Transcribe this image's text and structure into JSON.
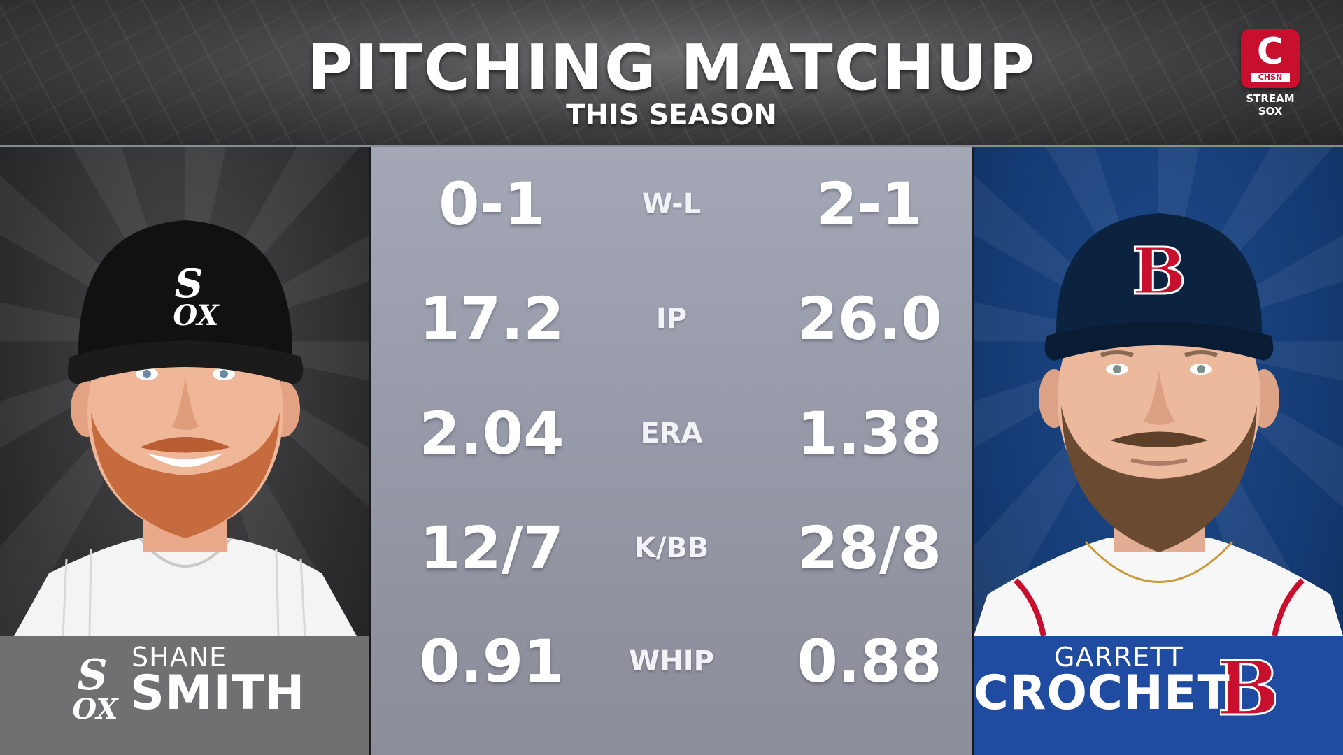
{
  "header": {
    "title": "PITCHING MATCHUP",
    "subtitle": "THIS SEASON",
    "network": {
      "name": "CHSN",
      "letter": "C",
      "tagline": "STREAM SOX",
      "color": "#c8102e"
    }
  },
  "pitchers": {
    "left": {
      "first_name": "SHANE",
      "last_name": "SMITH",
      "team": "White Sox",
      "team_color": "#707072"
    },
    "right": {
      "first_name": "GARRETT",
      "last_name": "CROCHET",
      "team": "Red Sox",
      "team_color": "#1f4ca0"
    }
  },
  "stats": [
    {
      "label": "W-L",
      "left": "0-1",
      "right": "2-1"
    },
    {
      "label": "IP",
      "left": "17.2",
      "right": "26.0"
    },
    {
      "label": "ERA",
      "left": "2.04",
      "right": "1.38"
    },
    {
      "label": "K/BB",
      "left": "12/7",
      "right": "28/8"
    },
    {
      "label": "WHIP",
      "left": "0.91",
      "right": "0.88"
    }
  ]
}
